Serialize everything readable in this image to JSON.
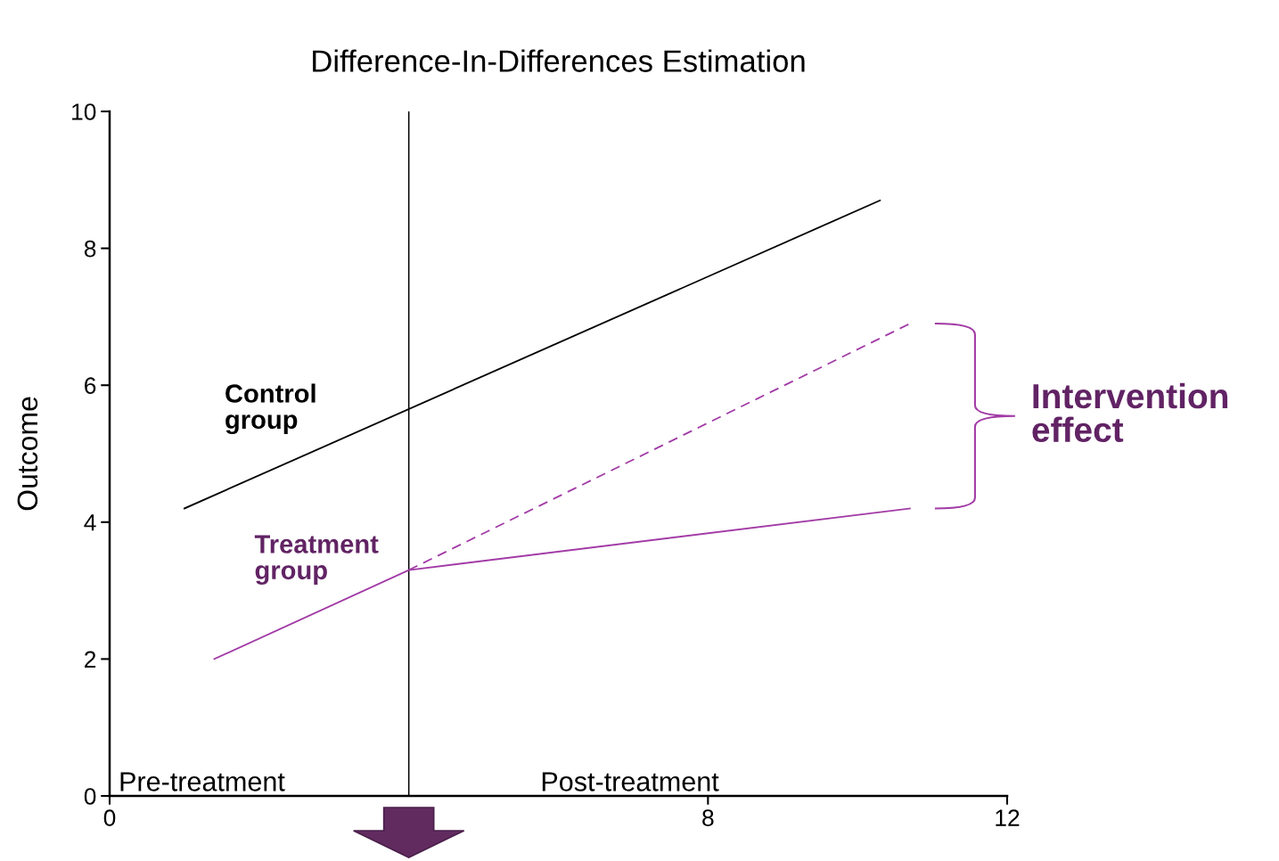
{
  "chart_data": {
    "type": "line",
    "title": "Difference-In-Differences Estimation",
    "ylabel": "Outcome",
    "xlim": [
      0,
      12
    ],
    "xticks": [
      0,
      8,
      12
    ],
    "ylim": [
      0,
      10
    ],
    "yticks": [
      0,
      2,
      4,
      6,
      8,
      10
    ],
    "series": [
      {
        "name": "Control group",
        "color": "#000000",
        "x": [
          1.0,
          10.3
        ],
        "values": [
          4.2,
          8.7
        ]
      },
      {
        "name": "Treatment group",
        "color": "#a23ba6",
        "x": [
          1.4,
          4,
          10.7
        ],
        "values": [
          2.0,
          3.3,
          4.2
        ]
      },
      {
        "color": "#a23ba6",
        "x": [
          4,
          10.7
        ],
        "values": [
          3.3,
          6.9
        ],
        "line_style": "dashed"
      }
    ],
    "ref_lines": [
      {
        "axis": "x",
        "value": 4,
        "color": "#000000"
      }
    ],
    "annotations": [
      "Pre-treatment",
      "Post-treatment",
      "Intervention effect"
    ]
  }
}
